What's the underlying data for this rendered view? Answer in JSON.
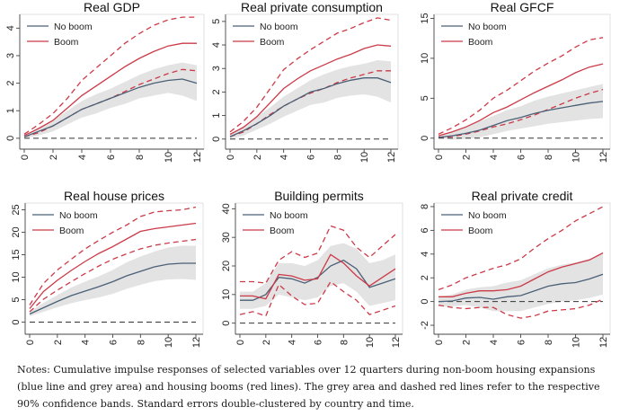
{
  "colors": {
    "no_boom": "#4a6076",
    "boom": "#cc3a48",
    "band": "#e3e3e3",
    "zero": "#333333"
  },
  "chart_data": [
    {
      "type": "line",
      "title": "Real GDP",
      "ylim": [
        -0.2,
        4.5
      ],
      "yticks": [
        0,
        1,
        2,
        3,
        4
      ],
      "x": [
        0,
        1,
        2,
        3,
        4,
        5,
        6,
        7,
        8,
        9,
        10,
        11,
        12
      ],
      "xticks": [
        0,
        2,
        4,
        6,
        8,
        10,
        12
      ],
      "legend": "top-left",
      "series": [
        {
          "name": "No boom",
          "values": [
            0.05,
            0.25,
            0.45,
            0.75,
            1.05,
            1.25,
            1.45,
            1.65,
            1.85,
            2.0,
            2.1,
            2.15,
            2.0
          ],
          "band": [
            [
              0,
              0.1
            ],
            [
              0.1,
              0.4
            ],
            [
              0.25,
              0.65
            ],
            [
              0.5,
              1.0
            ],
            [
              0.75,
              1.35
            ],
            [
              0.9,
              1.6
            ],
            [
              1.1,
              1.8
            ],
            [
              1.25,
              2.05
            ],
            [
              1.45,
              2.3
            ],
            [
              1.55,
              2.5
            ],
            [
              1.65,
              2.65
            ],
            [
              1.55,
              2.75
            ],
            [
              1.35,
              2.65
            ]
          ]
        },
        {
          "name": "Boom",
          "values": [
            0.1,
            0.35,
            0.65,
            1.1,
            1.55,
            1.9,
            2.25,
            2.6,
            2.9,
            3.15,
            3.35,
            3.45,
            3.45
          ],
          "lower": [
            0.05,
            0.2,
            0.45,
            0.75,
            1.05,
            1.25,
            1.45,
            1.7,
            1.95,
            2.15,
            2.35,
            2.5,
            2.45
          ],
          "upper": [
            0.15,
            0.5,
            0.9,
            1.45,
            2.1,
            2.55,
            3.0,
            3.45,
            3.8,
            4.1,
            4.3,
            4.4,
            4.4
          ]
        }
      ]
    },
    {
      "type": "line",
      "title": "Real private consumption",
      "ylim": [
        -0.2,
        5.3
      ],
      "yticks": [
        0,
        1,
        2,
        3,
        4,
        5
      ],
      "x": [
        0,
        1,
        2,
        3,
        4,
        5,
        6,
        7,
        8,
        9,
        10,
        11,
        12
      ],
      "xticks": [
        0,
        2,
        4,
        6,
        8,
        10,
        12
      ],
      "legend": "top-left",
      "series": [
        {
          "name": "No boom",
          "values": [
            0.1,
            0.35,
            0.65,
            1.0,
            1.4,
            1.7,
            2.0,
            2.15,
            2.35,
            2.5,
            2.6,
            2.6,
            2.4
          ],
          "band": [
            [
              0,
              0.2
            ],
            [
              0.15,
              0.55
            ],
            [
              0.4,
              0.95
            ],
            [
              0.65,
              1.35
            ],
            [
              0.95,
              1.8
            ],
            [
              1.2,
              2.15
            ],
            [
              1.45,
              2.5
            ],
            [
              1.55,
              2.75
            ],
            [
              1.75,
              2.95
            ],
            [
              1.85,
              3.1
            ],
            [
              1.9,
              3.2
            ],
            [
              1.8,
              3.35
            ],
            [
              1.55,
              3.3
            ]
          ]
        },
        {
          "name": "Boom",
          "values": [
            0.2,
            0.5,
            0.95,
            1.55,
            2.15,
            2.55,
            2.9,
            3.15,
            3.4,
            3.6,
            3.85,
            4.0,
            3.95
          ],
          "lower": [
            0.1,
            0.3,
            0.65,
            1.05,
            1.4,
            1.7,
            1.95,
            2.15,
            2.4,
            2.6,
            2.75,
            2.9,
            2.9
          ],
          "upper": [
            0.3,
            0.75,
            1.35,
            2.15,
            2.95,
            3.4,
            3.8,
            4.15,
            4.5,
            4.7,
            4.95,
            5.15,
            5.05
          ]
        }
      ]
    },
    {
      "type": "line",
      "title": "Real GFCF",
      "ylim": [
        -0.7,
        15.5
      ],
      "yticks": [
        0,
        5,
        10,
        15
      ],
      "x": [
        0,
        1,
        2,
        3,
        4,
        5,
        6,
        7,
        8,
        9,
        10,
        11,
        12
      ],
      "xticks": [
        0,
        2,
        4,
        6,
        8,
        10,
        12
      ],
      "legend": "top-left",
      "series": [
        {
          "name": "No boom",
          "values": [
            0.1,
            0.3,
            0.6,
            1.0,
            1.6,
            2.2,
            2.6,
            3.1,
            3.5,
            3.8,
            4.1,
            4.4,
            4.6
          ],
          "band": [
            [
              0,
              0.2
            ],
            [
              -0.2,
              0.8
            ],
            [
              -0.1,
              1.4
            ],
            [
              0.1,
              2.1
            ],
            [
              0.5,
              2.8
            ],
            [
              0.9,
              3.5
            ],
            [
              1.2,
              4.0
            ],
            [
              1.5,
              4.7
            ],
            [
              1.8,
              5.2
            ],
            [
              2.0,
              5.6
            ],
            [
              2.2,
              6.0
            ],
            [
              2.4,
              6.4
            ],
            [
              2.5,
              6.8
            ]
          ]
        },
        {
          "name": "Boom",
          "values": [
            0.3,
            0.8,
            1.4,
            2.2,
            3.2,
            3.9,
            4.8,
            5.7,
            6.5,
            7.3,
            8.2,
            8.9,
            9.3
          ],
          "lower": [
            0.1,
            0.2,
            0.5,
            0.9,
            1.4,
            1.8,
            2.3,
            2.9,
            3.6,
            4.3,
            5.0,
            5.6,
            6.1
          ],
          "upper": [
            0.5,
            1.3,
            2.3,
            3.5,
            5.0,
            6.0,
            7.2,
            8.4,
            9.4,
            10.3,
            11.4,
            12.3,
            12.6
          ]
        }
      ]
    },
    {
      "type": "line",
      "title": "Real house prices",
      "ylim": [
        -1.5,
        26.5
      ],
      "yticks": [
        0,
        5,
        10,
        15,
        20,
        25
      ],
      "x": [
        0,
        1,
        2,
        3,
        4,
        5,
        6,
        7,
        8,
        9,
        10,
        11,
        12
      ],
      "xticks": [
        0,
        2,
        4,
        6,
        8,
        10,
        12
      ],
      "legend": "top-left",
      "series": [
        {
          "name": "No boom",
          "values": [
            1.8,
            3.2,
            4.6,
            5.9,
            6.9,
            7.9,
            9.0,
            10.3,
            11.3,
            12.3,
            12.9,
            13.1,
            13.1
          ],
          "band": [
            [
              1.3,
              2.3
            ],
            [
              2.3,
              4.3
            ],
            [
              3.3,
              6.0
            ],
            [
              4.2,
              7.7
            ],
            [
              4.9,
              9.0
            ],
            [
              5.5,
              10.2
            ],
            [
              6.3,
              11.6
            ],
            [
              7.4,
              13.3
            ],
            [
              8.3,
              14.6
            ],
            [
              9.1,
              15.7
            ],
            [
              9.5,
              16.6
            ],
            [
              9.6,
              17.0
            ],
            [
              9.4,
              17.0
            ]
          ]
        },
        {
          "name": "Boom",
          "values": [
            3.0,
            6.8,
            9.3,
            11.5,
            13.5,
            15.3,
            16.8,
            18.5,
            20.2,
            20.8,
            21.2,
            21.6,
            22.0
          ],
          "lower": [
            2.3,
            5.1,
            7.1,
            9.0,
            10.8,
            12.5,
            14.0,
            15.2,
            16.3,
            17.1,
            17.6,
            18.0,
            18.4
          ],
          "upper": [
            3.8,
            8.6,
            11.6,
            14.0,
            16.3,
            18.2,
            20.0,
            21.6,
            23.5,
            24.5,
            24.8,
            25.0,
            25.6
          ]
        }
      ]
    },
    {
      "type": "line",
      "title": "Building permits",
      "ylim": [
        -2,
        42
      ],
      "yticks": [
        0,
        10,
        20,
        30,
        40
      ],
      "x": [
        0,
        1,
        2,
        3,
        4,
        5,
        6,
        7,
        8,
        9,
        10,
        11,
        12
      ],
      "xticks": [
        0,
        2,
        4,
        6,
        8,
        10,
        12
      ],
      "legend": "top-left",
      "series": [
        {
          "name": "No boom",
          "values": [
            8,
            8,
            10,
            16,
            15.5,
            14,
            16,
            20,
            22,
            19,
            12.5,
            14,
            15.5
          ],
          "band": [
            [
              5,
              11
            ],
            [
              5,
              11
            ],
            [
              6,
              14
            ],
            [
              10,
              21
            ],
            [
              9,
              21
            ],
            [
              8,
              20
            ],
            [
              9,
              22
            ],
            [
              13,
              27
            ],
            [
              14,
              28
            ],
            [
              11,
              26
            ],
            [
              6,
              21
            ],
            [
              7,
              22
            ],
            [
              8,
              24
            ]
          ]
        },
        {
          "name": "Boom",
          "values": [
            9.5,
            9.5,
            8.5,
            17,
            16.5,
            15,
            15.5,
            24,
            21,
            16.5,
            13,
            16,
            19
          ],
          "lower": [
            3,
            4,
            2.5,
            13.5,
            9.5,
            6.5,
            7,
            14.5,
            11,
            8,
            3,
            4.5,
            6
          ],
          "upper": [
            14.5,
            14.5,
            14,
            22,
            25,
            23,
            24.5,
            34,
            32.5,
            26.5,
            23,
            27,
            31
          ]
        }
      ]
    },
    {
      "type": "line",
      "title": "Real private credit",
      "ylim": [
        -2.3,
        8.3
      ],
      "yticks": [
        -2,
        0,
        2,
        4,
        6,
        8
      ],
      "x": [
        0,
        1,
        2,
        3,
        4,
        5,
        6,
        7,
        8,
        9,
        10,
        11,
        12
      ],
      "xticks": [
        0,
        2,
        4,
        6,
        8,
        10,
        12
      ],
      "legend": "top-left",
      "series": [
        {
          "name": "No boom",
          "values": [
            0,
            0.05,
            0.3,
            0.35,
            0.2,
            0.4,
            0.5,
            0.9,
            1.3,
            1.5,
            1.6,
            1.9,
            2.3
          ],
          "band": [
            [
              -0.4,
              0.4
            ],
            [
              -0.4,
              0.6
            ],
            [
              -0.3,
              1.0
            ],
            [
              -0.5,
              1.2
            ],
            [
              -0.8,
              1.3
            ],
            [
              -0.8,
              1.6
            ],
            [
              -0.8,
              1.8
            ],
            [
              -0.5,
              2.3
            ],
            [
              -0.2,
              2.8
            ],
            [
              0,
              3.1
            ],
            [
              0.1,
              3.3
            ],
            [
              0.3,
              3.6
            ],
            [
              0.6,
              4.0
            ]
          ]
        },
        {
          "name": "Boom",
          "values": [
            0.4,
            0.4,
            0.7,
            0.9,
            0.9,
            1.0,
            1.3,
            1.9,
            2.5,
            2.9,
            3.2,
            3.5,
            4.1
          ],
          "lower": [
            -0.3,
            -0.5,
            -0.6,
            -0.5,
            -0.5,
            -1.1,
            -1.4,
            -1.2,
            -0.8,
            -0.7,
            -0.6,
            -0.3,
            0.2
          ],
          "upper": [
            1.0,
            1.4,
            2.0,
            2.4,
            2.8,
            3.1,
            3.6,
            4.5,
            5.3,
            6.0,
            6.8,
            7.4,
            8.0
          ]
        }
      ]
    }
  ],
  "notes": "Notes: Cumulative impulse responses of selected variables over 12 quarters during non-boom housing expansions (blue line and grey area) and housing booms (red lines). The grey area and dashed red lines refer to the respective 90% confidence bands. Standard errors double-clustered by country and time."
}
